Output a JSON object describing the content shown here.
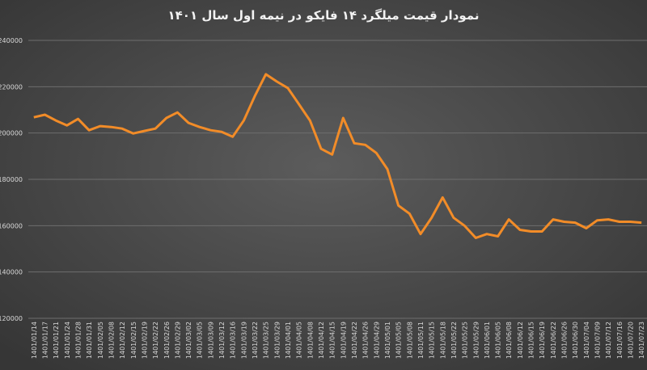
{
  "chart_data": {
    "type": "line",
    "title": "نمودار قیمت میلگرد ۱۴ فایکو در نیمه اول سال ۱۴۰۱",
    "categories": [
      "1401/01/14",
      "1401/01/17",
      "1401/01/21",
      "1401/01/24",
      "1401/01/28",
      "1401/01/31",
      "1401/02/05",
      "1401/02/08",
      "1401/02/12",
      "1401/02/15",
      "1401/02/19",
      "1401/02/22",
      "1401/02/26",
      "1401/02/29",
      "1401/03/02",
      "1401/03/05",
      "1401/03/09",
      "1401/03/12",
      "1401/03/16",
      "1401/03/19",
      "1401/03/22",
      "1401/03/25",
      "1401/03/29",
      "1401/04/01",
      "1401/04/05",
      "1401/04/08",
      "1401/04/12",
      "1401/04/15",
      "1401/04/19",
      "1401/04/22",
      "1401/04/26",
      "1401/04/29",
      "1401/05/01",
      "1401/05/05",
      "1401/05/08",
      "1401/05/11",
      "1401/05/15",
      "1401/05/18",
      "1401/05/22",
      "1401/05/25",
      "1401/05/29",
      "1401/06/01",
      "1401/06/05",
      "1401/06/08",
      "1401/06/12",
      "1401/06/15",
      "1401/06/19",
      "1401/06/22",
      "1401/06/26",
      "1401/06/30",
      "1401/07/04",
      "1401/07/09",
      "1401/07/12",
      "1401/07/16",
      "1401/07/20",
      "1401/07/23"
    ],
    "series": [
      {
        "color": "#f28c28",
        "values": [
          206800,
          207900,
          205400,
          203300,
          206100,
          201200,
          203000,
          202600,
          201900,
          199800,
          200900,
          201900,
          206500,
          208900,
          204400,
          202600,
          201200,
          200500,
          198400,
          205400,
          215900,
          225400,
          222200,
          219400,
          212400,
          205400,
          193200,
          190700,
          206500,
          195600,
          194900,
          191400,
          184400,
          168700,
          165200,
          156400,
          163400,
          172200,
          163400,
          159900,
          154700,
          156400,
          155400,
          162700,
          158200,
          157500,
          157500,
          162700,
          161700,
          161300,
          158900,
          162300,
          162700,
          161700,
          161700,
          161300
        ]
      }
    ],
    "ylim": [
      120000,
      240000
    ],
    "yticks": [
      120000,
      140000,
      160000,
      180000,
      200000,
      220000,
      240000
    ],
    "grid": true
  }
}
